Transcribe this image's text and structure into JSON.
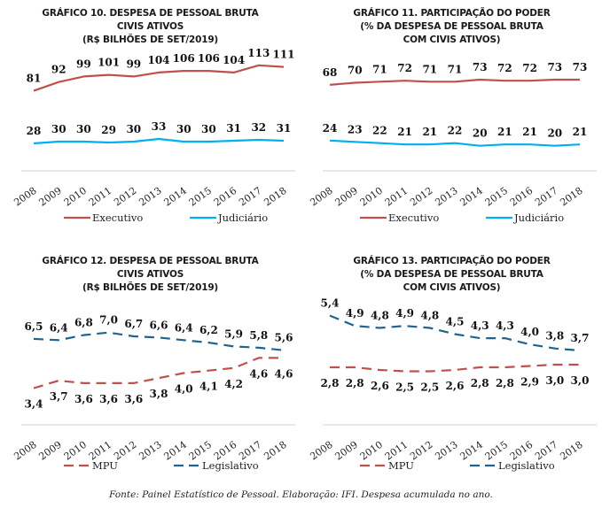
{
  "source_note": "Fonte: Painel Estatístico de Pessoal. Elaboração: IFI. Despesa acumulada no ano.",
  "chart_data": [
    {
      "type": "line",
      "title_lines": [
        "GRÁFICO 10. DESPESA DE PESSOAL BRUTA",
        "CIVIS ATIVOS",
        "(R$ BILHÕES DE SET/2019)"
      ],
      "x": [
        "2008",
        "2009",
        "2010",
        "2011",
        "2012",
        "2013",
        "2014",
        "2015",
        "2016",
        "2017",
        "2018"
      ],
      "series": [
        {
          "name": "Executivo",
          "color": "#c0504d",
          "dash": "solid",
          "values": [
            81,
            92,
            99,
            101,
            99,
            104,
            106,
            106,
            104,
            113,
            111
          ],
          "labels": [
            "81",
            "92",
            "99",
            "101",
            "99",
            "104",
            "106",
            "106",
            "104",
            "113",
            "111"
          ]
        },
        {
          "name": "Judiciário",
          "color": "#00b0f0",
          "dash": "solid",
          "values": [
            28,
            30,
            30,
            29,
            30,
            33,
            30,
            30,
            31,
            32,
            31
          ],
          "labels": [
            "28",
            "30",
            "30",
            "29",
            "30",
            "33",
            "30",
            "30",
            "31",
            "32",
            "31"
          ]
        }
      ],
      "grid": false,
      "legend": "bottom"
    },
    {
      "type": "line",
      "title_lines": [
        "GRÁFICO 11.  PARTICIPAÇÃO DO PODER",
        "(% DA DESPESA DE PESSOAL BRUTA",
        "COM CIVIS ATIVOS)"
      ],
      "x": [
        "2008",
        "2009",
        "2010",
        "2011",
        "2012",
        "2013",
        "2014",
        "2015",
        "2016",
        "2017",
        "2018"
      ],
      "series": [
        {
          "name": "Executivo",
          "color": "#c0504d",
          "dash": "solid",
          "values": [
            68,
            70,
            71,
            72,
            71,
            71,
            73,
            72,
            72,
            73,
            73
          ],
          "labels": [
            "68",
            "70",
            "71",
            "72",
            "71",
            "71",
            "73",
            "72",
            "72",
            "73",
            "73"
          ]
        },
        {
          "name": "Judiciário",
          "color": "#00b0f0",
          "dash": "solid",
          "values": [
            24,
            23,
            22,
            21,
            21,
            22,
            20,
            21,
            21,
            20,
            21
          ],
          "labels": [
            "24",
            "23",
            "22",
            "21",
            "21",
            "22",
            "20",
            "21",
            "21",
            "20",
            "21"
          ]
        }
      ],
      "grid": false,
      "legend": "bottom"
    },
    {
      "type": "line",
      "title_lines": [
        "GRÁFICO 12. DESPESA DE PESSOAL BRUTA",
        "CIVIS ATIVOS",
        "(R$ BILHÕES DE SET/2019)"
      ],
      "x": [
        "2008",
        "2009",
        "2010",
        "2011",
        "2012",
        "2013",
        "2014",
        "2015",
        "2016",
        "2017",
        "2018"
      ],
      "series": [
        {
          "name": "MPU",
          "color": "#c0504d",
          "dash": "dashed",
          "values": [
            3.4,
            3.7,
            3.6,
            3.6,
            3.6,
            3.8,
            4.0,
            4.1,
            4.2,
            4.6,
            4.6
          ],
          "labels": [
            "3,4",
            "3,7",
            "3,6",
            "3,6",
            "3,6",
            "3,8",
            "4,0",
            "4,1",
            "4,2",
            "4,6",
            "4,6"
          ]
        },
        {
          "name": "Legislativo",
          "color": "#1f6391",
          "dash": "dashed",
          "values": [
            6.5,
            6.4,
            6.8,
            7.0,
            6.7,
            6.6,
            6.4,
            6.2,
            5.9,
            5.8,
            5.6
          ],
          "labels": [
            "6,5",
            "6,4",
            "6,8",
            "7,0",
            "6,7",
            "6,6",
            "6,4",
            "6,2",
            "5,9",
            "5,8",
            "5,6"
          ]
        }
      ],
      "grid": false,
      "legend": "bottom"
    },
    {
      "type": "line",
      "title_lines": [
        "GRÁFICO 13. PARTICIPAÇÃO DO PODER",
        "(% DA DESPESA DE PESSOAL BRUTA",
        "COM CIVIS ATIVOS)"
      ],
      "x": [
        "2008",
        "2009",
        "2010",
        "2011",
        "2012",
        "2013",
        "2014",
        "2015",
        "2016",
        "2017",
        "2018"
      ],
      "series": [
        {
          "name": "MPU",
          "color": "#c0504d",
          "dash": "dashed",
          "values": [
            2.8,
            2.8,
            2.6,
            2.5,
            2.5,
            2.6,
            2.8,
            2.8,
            2.9,
            3.0,
            3.0
          ],
          "labels": [
            "2,8",
            "2,8",
            "2,6",
            "2,5",
            "2,5",
            "2,6",
            "2,8",
            "2,8",
            "2,9",
            "3,0",
            "3,0"
          ]
        },
        {
          "name": "Legislativo",
          "color": "#1f6391",
          "dash": "dashed",
          "values": [
            5.4,
            4.9,
            4.8,
            4.9,
            4.8,
            4.5,
            4.3,
            4.3,
            4.0,
            3.8,
            3.7
          ],
          "labels": [
            "5,4",
            "4,9",
            "4,8",
            "4,9",
            "4,8",
            "4,5",
            "4,3",
            "4,3",
            "4,0",
            "3,8",
            "3,7"
          ]
        }
      ],
      "grid": false,
      "legend": "bottom"
    }
  ]
}
